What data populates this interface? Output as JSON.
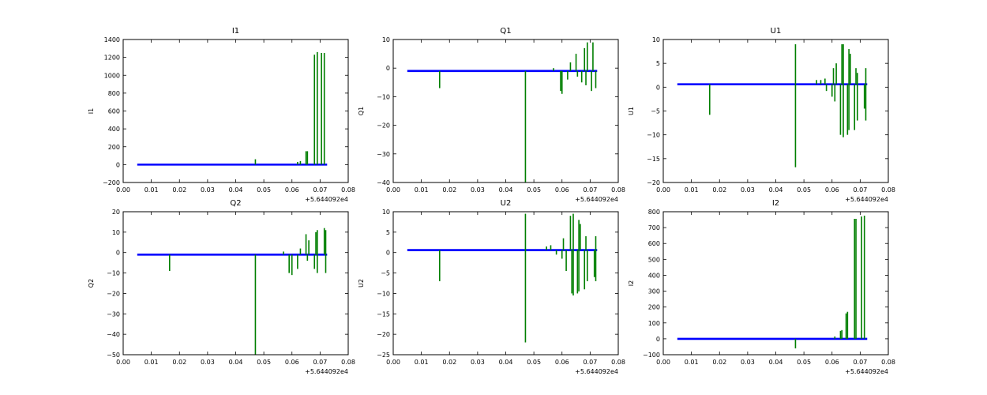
{
  "colors": {
    "blue": "#0000ff",
    "green": "#007f00",
    "axis": "#000000"
  },
  "chart_data": [
    {
      "type": "line",
      "id": "I1",
      "title": "I1",
      "ylabel": "I1",
      "xlim": [
        0.0,
        0.08
      ],
      "ylim": [
        -200,
        1400
      ],
      "xticks": [
        "0.00",
        "0.01",
        "0.02",
        "0.03",
        "0.04",
        "0.05",
        "0.06",
        "0.07",
        "0.08"
      ],
      "yticks": [
        -200,
        0,
        200,
        400,
        600,
        800,
        1000,
        1200,
        1400
      ],
      "ytick_labels": [
        "−200",
        "0",
        "200",
        "400",
        "600",
        "800",
        "1000",
        "1200",
        "1400"
      ],
      "x_offset_label": "+5.644092e4",
      "baseline": {
        "x": [
          0.005,
          0.0725
        ],
        "y": 0
      },
      "spikes": [
        {
          "x": 0.047,
          "y0": 0,
          "y1": 60
        },
        {
          "x": 0.062,
          "y0": 0,
          "y1": 30
        },
        {
          "x": 0.063,
          "y0": 0,
          "y1": 40
        },
        {
          "x": 0.065,
          "y0": 0,
          "y1": 150
        },
        {
          "x": 0.0655,
          "y0": 0,
          "y1": 150
        },
        {
          "x": 0.068,
          "y0": 0,
          "y1": 1230
        },
        {
          "x": 0.069,
          "y0": 0,
          "y1": 1260
        },
        {
          "x": 0.0705,
          "y0": 0,
          "y1": 1250
        },
        {
          "x": 0.0715,
          "y0": 0,
          "y1": 1250
        }
      ]
    },
    {
      "type": "line",
      "id": "Q1",
      "title": "Q1",
      "ylabel": "Q1",
      "xlim": [
        0.0,
        0.08
      ],
      "ylim": [
        -40,
        10
      ],
      "xticks": [
        "0.00",
        "0.01",
        "0.02",
        "0.03",
        "0.04",
        "0.05",
        "0.06",
        "0.07",
        "0.08"
      ],
      "yticks": [
        -40,
        -30,
        -20,
        -10,
        0,
        10
      ],
      "ytick_labels": [
        "−40",
        "−30",
        "−20",
        "−10",
        "0",
        "10"
      ],
      "x_offset_label": "+5.644092e4",
      "baseline": {
        "x": [
          0.005,
          0.0725
        ],
        "y": -1
      },
      "spikes": [
        {
          "x": 0.0165,
          "y0": -1,
          "y1": -7
        },
        {
          "x": 0.047,
          "y0": -1,
          "y1": -40
        },
        {
          "x": 0.057,
          "y0": -1,
          "y1": 0
        },
        {
          "x": 0.0595,
          "y0": -1,
          "y1": -8
        },
        {
          "x": 0.06,
          "y0": -1,
          "y1": -9
        },
        {
          "x": 0.062,
          "y0": -1,
          "y1": -4
        },
        {
          "x": 0.063,
          "y0": -1,
          "y1": 2
        },
        {
          "x": 0.065,
          "y0": -1,
          "y1": 5
        },
        {
          "x": 0.0655,
          "y0": -1,
          "y1": -3
        },
        {
          "x": 0.067,
          "y0": -1,
          "y1": -5
        },
        {
          "x": 0.068,
          "y0": -1,
          "y1": 7
        },
        {
          "x": 0.0685,
          "y0": -1,
          "y1": -6
        },
        {
          "x": 0.069,
          "y0": -1,
          "y1": 9
        },
        {
          "x": 0.0705,
          "y0": -1,
          "y1": -8
        },
        {
          "x": 0.071,
          "y0": -1,
          "y1": 9
        },
        {
          "x": 0.072,
          "y0": -1,
          "y1": -7
        }
      ]
    },
    {
      "type": "line",
      "id": "U1",
      "title": "U1",
      "ylabel": "U1",
      "xlim": [
        0.0,
        0.08
      ],
      "ylim": [
        -20,
        10
      ],
      "xticks": [
        "0.00",
        "0.01",
        "0.02",
        "0.03",
        "0.04",
        "0.05",
        "0.06",
        "0.07",
        "0.08"
      ],
      "yticks": [
        -20,
        -15,
        -10,
        -5,
        0,
        5,
        10
      ],
      "ytick_labels": [
        "−20",
        "−15",
        "−10",
        "−5",
        "0",
        "5",
        "10"
      ],
      "x_offset_label": "+5.644092e4",
      "baseline": {
        "x": [
          0.005,
          0.0725
        ],
        "y": 0.6
      },
      "spikes": [
        {
          "x": 0.0165,
          "y0": 0.6,
          "y1": -5.8
        },
        {
          "x": 0.047,
          "y0": 0.6,
          "y1": -16.8
        },
        {
          "x": 0.047,
          "y0": 0.6,
          "y1": 9
        },
        {
          "x": 0.0545,
          "y0": 0.6,
          "y1": 1.5
        },
        {
          "x": 0.056,
          "y0": 0.6,
          "y1": 1.5
        },
        {
          "x": 0.0575,
          "y0": 0.6,
          "y1": 1.8
        },
        {
          "x": 0.058,
          "y0": 0.6,
          "y1": -0.8
        },
        {
          "x": 0.06,
          "y0": 0.6,
          "y1": -2
        },
        {
          "x": 0.0605,
          "y0": 0.6,
          "y1": 4
        },
        {
          "x": 0.061,
          "y0": 0.6,
          "y1": -3
        },
        {
          "x": 0.0615,
          "y0": 0.6,
          "y1": 5
        },
        {
          "x": 0.063,
          "y0": 0.6,
          "y1": -10
        },
        {
          "x": 0.0635,
          "y0": 0.6,
          "y1": 9
        },
        {
          "x": 0.064,
          "y0": 0.6,
          "y1": -10.5
        },
        {
          "x": 0.064,
          "y0": 0.6,
          "y1": 9
        },
        {
          "x": 0.0655,
          "y0": 0.6,
          "y1": -10
        },
        {
          "x": 0.066,
          "y0": 0.6,
          "y1": 8
        },
        {
          "x": 0.066,
          "y0": 0.6,
          "y1": -9
        },
        {
          "x": 0.0665,
          "y0": 0.6,
          "y1": 7
        },
        {
          "x": 0.068,
          "y0": 0.6,
          "y1": -9
        },
        {
          "x": 0.0685,
          "y0": 0.6,
          "y1": 4
        },
        {
          "x": 0.069,
          "y0": 0.6,
          "y1": -7
        },
        {
          "x": 0.069,
          "y0": 0.6,
          "y1": 3
        },
        {
          "x": 0.0715,
          "y0": 0.6,
          "y1": -4.5
        },
        {
          "x": 0.072,
          "y0": 0.6,
          "y1": -7
        },
        {
          "x": 0.072,
          "y0": 0.6,
          "y1": 4
        }
      ]
    },
    {
      "type": "line",
      "id": "Q2",
      "title": "Q2",
      "ylabel": "Q2",
      "xlim": [
        0.0,
        0.08
      ],
      "ylim": [
        -50,
        20
      ],
      "xticks": [
        "0.00",
        "0.01",
        "0.02",
        "0.03",
        "0.04",
        "0.05",
        "0.06",
        "0.07",
        "0.08"
      ],
      "yticks": [
        -50,
        -40,
        -30,
        -20,
        -10,
        0,
        10,
        20
      ],
      "ytick_labels": [
        "−50",
        "−40",
        "−30",
        "−20",
        "−10",
        "0",
        "10",
        "20"
      ],
      "x_offset_label": "+5.644092e4",
      "baseline": {
        "x": [
          0.005,
          0.0725
        ],
        "y": -1
      },
      "spikes": [
        {
          "x": 0.0165,
          "y0": -1,
          "y1": -9
        },
        {
          "x": 0.047,
          "y0": -1,
          "y1": -50
        },
        {
          "x": 0.057,
          "y0": -1,
          "y1": 0.5
        },
        {
          "x": 0.059,
          "y0": -1,
          "y1": -10
        },
        {
          "x": 0.06,
          "y0": -1,
          "y1": -11
        },
        {
          "x": 0.062,
          "y0": -1,
          "y1": -8
        },
        {
          "x": 0.063,
          "y0": -1,
          "y1": 2
        },
        {
          "x": 0.065,
          "y0": -1,
          "y1": 9
        },
        {
          "x": 0.0655,
          "y0": -1,
          "y1": -4
        },
        {
          "x": 0.066,
          "y0": -1,
          "y1": 6
        },
        {
          "x": 0.068,
          "y0": -1,
          "y1": -8
        },
        {
          "x": 0.0685,
          "y0": -1,
          "y1": 10
        },
        {
          "x": 0.069,
          "y0": -1,
          "y1": -10
        },
        {
          "x": 0.069,
          "y0": -1,
          "y1": 11
        },
        {
          "x": 0.0715,
          "y0": -1,
          "y1": 12
        },
        {
          "x": 0.072,
          "y0": -1,
          "y1": -10
        },
        {
          "x": 0.072,
          "y0": -1,
          "y1": 11
        }
      ]
    },
    {
      "type": "line",
      "id": "U2",
      "title": "U2",
      "ylabel": "U2",
      "xlim": [
        0.0,
        0.08
      ],
      "ylim": [
        -25,
        10
      ],
      "xticks": [
        "0.00",
        "0.01",
        "0.02",
        "0.03",
        "0.04",
        "0.05",
        "0.06",
        "0.07",
        "0.08"
      ],
      "yticks": [
        -25,
        -20,
        -15,
        -10,
        -5,
        0,
        5,
        10
      ],
      "ytick_labels": [
        "−25",
        "−20",
        "−15",
        "−10",
        "−5",
        "0",
        "5",
        "10"
      ],
      "x_offset_label": "+5.644092e4",
      "baseline": {
        "x": [
          0.005,
          0.0725
        ],
        "y": 0.6
      },
      "spikes": [
        {
          "x": 0.0165,
          "y0": 0.6,
          "y1": -7
        },
        {
          "x": 0.047,
          "y0": 0.6,
          "y1": -22
        },
        {
          "x": 0.047,
          "y0": 0.6,
          "y1": 9.5
        },
        {
          "x": 0.0545,
          "y0": 0.6,
          "y1": 1.5
        },
        {
          "x": 0.056,
          "y0": 0.6,
          "y1": 1.8
        },
        {
          "x": 0.058,
          "y0": 0.6,
          "y1": -0.5
        },
        {
          "x": 0.06,
          "y0": 0.6,
          "y1": -1.5
        },
        {
          "x": 0.0605,
          "y0": 0.6,
          "y1": 3.5
        },
        {
          "x": 0.0615,
          "y0": 0.6,
          "y1": -4.5
        },
        {
          "x": 0.063,
          "y0": 0.6,
          "y1": 9
        },
        {
          "x": 0.0635,
          "y0": 0.6,
          "y1": -10
        },
        {
          "x": 0.064,
          "y0": 0.6,
          "y1": 9.5
        },
        {
          "x": 0.064,
          "y0": 0.6,
          "y1": -10.5
        },
        {
          "x": 0.0655,
          "y0": 0.6,
          "y1": -10
        },
        {
          "x": 0.066,
          "y0": 0.6,
          "y1": 8
        },
        {
          "x": 0.066,
          "y0": 0.6,
          "y1": -9.5
        },
        {
          "x": 0.0665,
          "y0": 0.6,
          "y1": 7
        },
        {
          "x": 0.068,
          "y0": 0.6,
          "y1": -9
        },
        {
          "x": 0.0685,
          "y0": 0.6,
          "y1": 4
        },
        {
          "x": 0.069,
          "y0": 0.6,
          "y1": -7
        },
        {
          "x": 0.0715,
          "y0": 0.6,
          "y1": -6
        },
        {
          "x": 0.072,
          "y0": 0.6,
          "y1": -7
        },
        {
          "x": 0.072,
          "y0": 0.6,
          "y1": 4
        }
      ]
    },
    {
      "type": "line",
      "id": "I2",
      "title": "I2",
      "ylabel": "I2",
      "xlim": [
        0.0,
        0.08
      ],
      "ylim": [
        -100,
        800
      ],
      "xticks": [
        "0.00",
        "0.01",
        "0.02",
        "0.03",
        "0.04",
        "0.05",
        "0.06",
        "0.07",
        "0.08"
      ],
      "yticks": [
        -100,
        0,
        100,
        200,
        300,
        400,
        500,
        600,
        700,
        800
      ],
      "ytick_labels": [
        "−100",
        "0",
        "100",
        "200",
        "300",
        "400",
        "500",
        "600",
        "700",
        "800"
      ],
      "x_offset_label": "+5.644092e4",
      "baseline": {
        "x": [
          0.005,
          0.0725
        ],
        "y": 0
      },
      "spikes": [
        {
          "x": 0.047,
          "y0": 0,
          "y1": -60
        },
        {
          "x": 0.061,
          "y0": 0,
          "y1": 15
        },
        {
          "x": 0.063,
          "y0": 0,
          "y1": 50
        },
        {
          "x": 0.0635,
          "y0": 0,
          "y1": 55
        },
        {
          "x": 0.065,
          "y0": 0,
          "y1": 160
        },
        {
          "x": 0.0655,
          "y0": 0,
          "y1": 170
        },
        {
          "x": 0.068,
          "y0": 0,
          "y1": 755
        },
        {
          "x": 0.0685,
          "y0": 0,
          "y1": 755
        },
        {
          "x": 0.0705,
          "y0": 0,
          "y1": 770
        },
        {
          "x": 0.0715,
          "y0": 0,
          "y1": 775
        }
      ]
    }
  ]
}
